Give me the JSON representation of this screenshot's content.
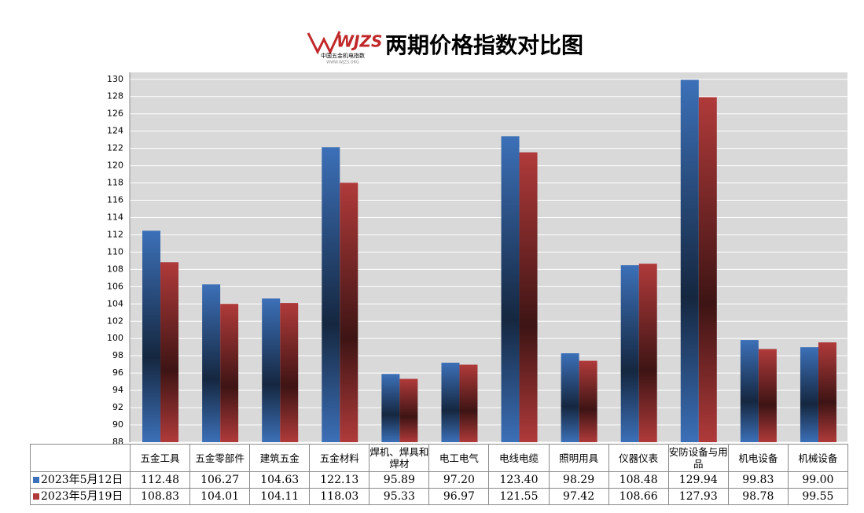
{
  "chart_data": {
    "type": "bar",
    "title": "两期价格指数对比图",
    "logo": {
      "mark": "WJZS",
      "name": "中国五金机电指数",
      "url": "WWW.WJZS.ORG"
    },
    "categories": [
      "五金工具",
      "五金零部件",
      "建筑五金",
      "五金材料",
      "焊机、焊具和焊材",
      "电工电气",
      "电线电缆",
      "照明用具",
      "仪器仪表",
      "安防设备与用品",
      "机电设备",
      "机械设备"
    ],
    "series": [
      {
        "name": "2023年5月12日",
        "color": "#3c70b8",
        "values": [
          112.48,
          106.27,
          104.63,
          122.13,
          95.89,
          97.2,
          123.4,
          98.29,
          108.48,
          129.94,
          99.83,
          99.0
        ],
        "value_labels": [
          "112.48",
          "106.27",
          "104.63",
          "122.13",
          "95.89",
          "97.20",
          "123.40",
          "98.29",
          "108.48",
          "129.94",
          "99.83",
          "99.00"
        ]
      },
      {
        "name": "2023年5月19日",
        "color": "#b03a3a",
        "values": [
          108.83,
          104.01,
          104.11,
          118.03,
          95.33,
          96.97,
          121.55,
          97.42,
          108.66,
          127.93,
          98.78,
          99.55
        ]
      }
    ],
    "ylim": [
      88,
      130.8
    ],
    "yticks": [
      88,
      90,
      92,
      94,
      96,
      98,
      100,
      102,
      104,
      106,
      108,
      110,
      112,
      114,
      116,
      118,
      120,
      122,
      124,
      126,
      128,
      130
    ],
    "grid": true
  }
}
